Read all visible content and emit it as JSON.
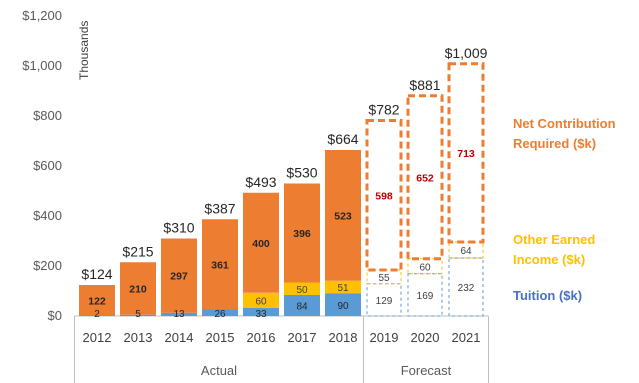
{
  "chart_data": {
    "type": "bar",
    "stacked": true,
    "unit_label": "Thousands",
    "y_ticks": [
      "$0",
      "$200",
      "$400",
      "$600",
      "$800",
      "$1,000",
      "$1,200"
    ],
    "ylim": [
      0,
      1200
    ],
    "categories": [
      "2012",
      "2013",
      "2014",
      "2015",
      "2016",
      "2017",
      "2018",
      "2019",
      "2020",
      "2021"
    ],
    "groups": [
      {
        "label": "Actual",
        "categories": [
          "2012",
          "2013",
          "2014",
          "2015",
          "2016",
          "2017",
          "2018"
        ]
      },
      {
        "label": "Forecast",
        "categories": [
          "2019",
          "2020",
          "2021"
        ]
      }
    ],
    "forecast_categories": [
      "2019",
      "2020",
      "2021"
    ],
    "series": [
      {
        "name": "Tuition ($k)",
        "color": "#5b9bd5",
        "values": [
          2,
          5,
          13,
          26,
          33,
          84,
          90,
          129,
          169,
          232
        ],
        "labels": [
          "2",
          "5",
          "13",
          "26",
          "33",
          "84",
          "90",
          "129",
          "169",
          "232"
        ]
      },
      {
        "name": "Other Earned Income ($k)",
        "color": "#ffc000",
        "values": [
          0,
          0,
          0,
          0,
          60,
          50,
          51,
          55,
          60,
          64
        ],
        "labels": [
          "",
          "",
          "",
          "",
          "60",
          "50",
          "51",
          "55",
          "60",
          "64"
        ]
      },
      {
        "name": "Net Contribution Required ($k)",
        "color": "#ed7d31",
        "values": [
          122,
          210,
          297,
          361,
          400,
          396,
          523,
          598,
          652,
          713
        ],
        "labels": [
          "122",
          "210",
          "297",
          "361",
          "400",
          "396",
          "523",
          "598",
          "652",
          "713"
        ]
      }
    ],
    "totals": [
      "$124",
      "$215",
      "$310",
      "$387",
      "$493",
      "$530",
      "$664",
      "$782",
      "$881",
      "$1,009"
    ],
    "legend": [
      {
        "text": [
          "Net Contribution",
          "Required ($k)"
        ],
        "color": "#ed7d31"
      },
      {
        "text": [
          "Other Earned",
          "Income ($k)"
        ],
        "color": "#ffc000"
      },
      {
        "text": [
          "Tuition ($k)"
        ],
        "color": "#4472c4"
      }
    ],
    "legend_position": "right",
    "grid": false,
    "forecast_label_color": "#c00000"
  }
}
